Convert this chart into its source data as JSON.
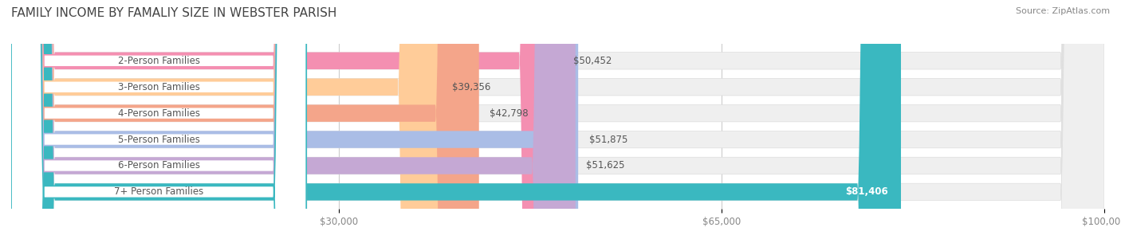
{
  "title": "FAMILY INCOME BY FAMALIY SIZE IN WEBSTER PARISH",
  "source": "Source: ZipAtlas.com",
  "categories": [
    "2-Person Families",
    "3-Person Families",
    "4-Person Families",
    "5-Person Families",
    "6-Person Families",
    "7+ Person Families"
  ],
  "values": [
    50452,
    39356,
    42798,
    51875,
    51625,
    81406
  ],
  "bar_colors": [
    "#F48FB1",
    "#FFCC99",
    "#F4A58A",
    "#AABDE6",
    "#C5A8D4",
    "#3AB8C0"
  ],
  "bar_bg_color": "#EFEFEF",
  "value_labels": [
    "$50,452",
    "$39,356",
    "$42,798",
    "$51,875",
    "$51,625",
    "$81,406"
  ],
  "x_ticks": [
    30000,
    65000,
    100000
  ],
  "x_tick_labels": [
    "$30,000",
    "$65,000",
    "$100,000"
  ],
  "xlim": [
    0,
    100000
  ],
  "background_color": "#FFFFFF",
  "title_fontsize": 11,
  "bar_height": 0.65,
  "label_fontsize": 8.5,
  "value_fontsize": 8.5,
  "tick_fontsize": 8.5,
  "source_fontsize": 8
}
